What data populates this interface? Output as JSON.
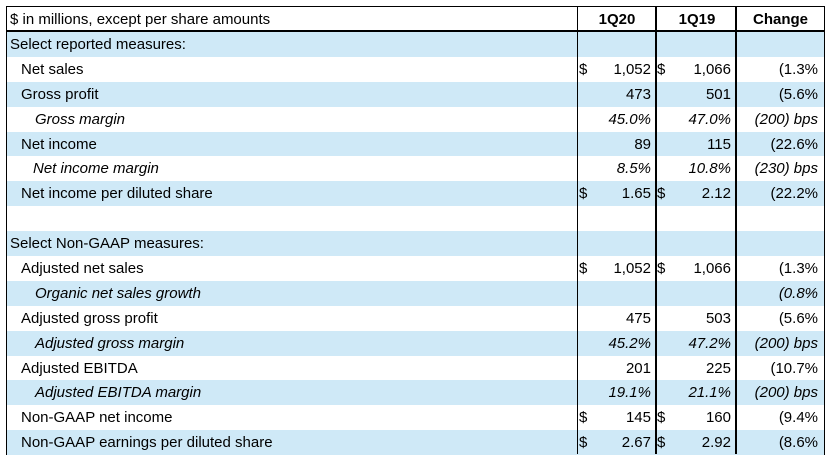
{
  "header": {
    "label": "$ in millions, except per share amounts",
    "col1": "1Q20",
    "col2": "1Q19",
    "col3": "Change"
  },
  "rows": [
    {
      "label": "Select reported measures:",
      "indent": 0,
      "italic": false,
      "shaded": true,
      "d1": "",
      "v1": "",
      "d2": "",
      "v2": "",
      "chg": "",
      "vitalic": false
    },
    {
      "label": "Net sales",
      "indent": 1,
      "italic": false,
      "shaded": false,
      "d1": "$",
      "v1": "1,052",
      "d2": "$",
      "v2": "1,066",
      "chg": "(1.3%",
      "vitalic": false
    },
    {
      "label": "Gross profit",
      "indent": 1,
      "italic": false,
      "shaded": true,
      "d1": "",
      "v1": "473",
      "d2": "",
      "v2": "501",
      "chg": "(5.6%",
      "vitalic": false
    },
    {
      "label": "Gross margin",
      "indent": 2,
      "italic": true,
      "shaded": false,
      "d1": "",
      "v1": "45.0%",
      "d2": "",
      "v2": "47.0%",
      "chg": "(200) bps",
      "vitalic": true
    },
    {
      "label": "Net income",
      "indent": 1,
      "italic": false,
      "shaded": true,
      "d1": "",
      "v1": "89",
      "d2": "",
      "v2": "115",
      "chg": "(22.6%",
      "vitalic": false
    },
    {
      "label": "Net income margin",
      "indent": 3,
      "italic": true,
      "shaded": false,
      "d1": "",
      "v1": "8.5%",
      "d2": "",
      "v2": "10.8%",
      "chg": "(230) bps",
      "vitalic": true
    },
    {
      "label": "Net income per diluted share",
      "indent": 1,
      "italic": false,
      "shaded": true,
      "d1": "$",
      "v1": "1.65",
      "d2": "$",
      "v2": "2.12",
      "chg": "(22.2%",
      "vitalic": false
    },
    {
      "label": "",
      "indent": 0,
      "italic": false,
      "shaded": false,
      "d1": "",
      "v1": "",
      "d2": "",
      "v2": "",
      "chg": "",
      "vitalic": false
    },
    {
      "label": "Select Non-GAAP measures:",
      "indent": 0,
      "italic": false,
      "shaded": true,
      "d1": "",
      "v1": "",
      "d2": "",
      "v2": "",
      "chg": "",
      "vitalic": false
    },
    {
      "label": "Adjusted net sales",
      "indent": 1,
      "italic": false,
      "shaded": false,
      "d1": "$",
      "v1": "1,052",
      "d2": "$",
      "v2": "1,066",
      "chg": "(1.3%",
      "vitalic": false
    },
    {
      "label": "Organic net sales growth",
      "indent": 2,
      "italic": true,
      "shaded": true,
      "d1": "",
      "v1": "",
      "d2": "",
      "v2": "",
      "chg": "(0.8%",
      "vitalic": true
    },
    {
      "label": "Adjusted gross profit",
      "indent": 1,
      "italic": false,
      "shaded": false,
      "d1": "",
      "v1": "475",
      "d2": "",
      "v2": "503",
      "chg": "(5.6%",
      "vitalic": false
    },
    {
      "label": "Adjusted gross margin",
      "indent": 2,
      "italic": true,
      "shaded": true,
      "d1": "",
      "v1": "45.2%",
      "d2": "",
      "v2": "47.2%",
      "chg": "(200) bps",
      "vitalic": true
    },
    {
      "label": "Adjusted EBITDA",
      "indent": 1,
      "italic": false,
      "shaded": false,
      "d1": "",
      "v1": "201",
      "d2": "",
      "v2": "225",
      "chg": "(10.7%",
      "vitalic": false
    },
    {
      "label": "Adjusted EBITDA margin",
      "indent": 2,
      "italic": true,
      "shaded": true,
      "d1": "",
      "v1": "19.1%",
      "d2": "",
      "v2": "21.1%",
      "chg": "(200) bps",
      "vitalic": true
    },
    {
      "label": "Non-GAAP net income",
      "indent": 1,
      "italic": false,
      "shaded": false,
      "d1": "$",
      "v1": "145",
      "d2": "$",
      "v2": "160",
      "chg": "(9.4%",
      "vitalic": false
    },
    {
      "label": "Non-GAAP earnings per diluted share",
      "indent": 1,
      "italic": false,
      "shaded": true,
      "d1": "$",
      "v1": "2.67",
      "d2": "$",
      "v2": "2.92",
      "chg": "(8.6%",
      "vitalic": false
    }
  ]
}
